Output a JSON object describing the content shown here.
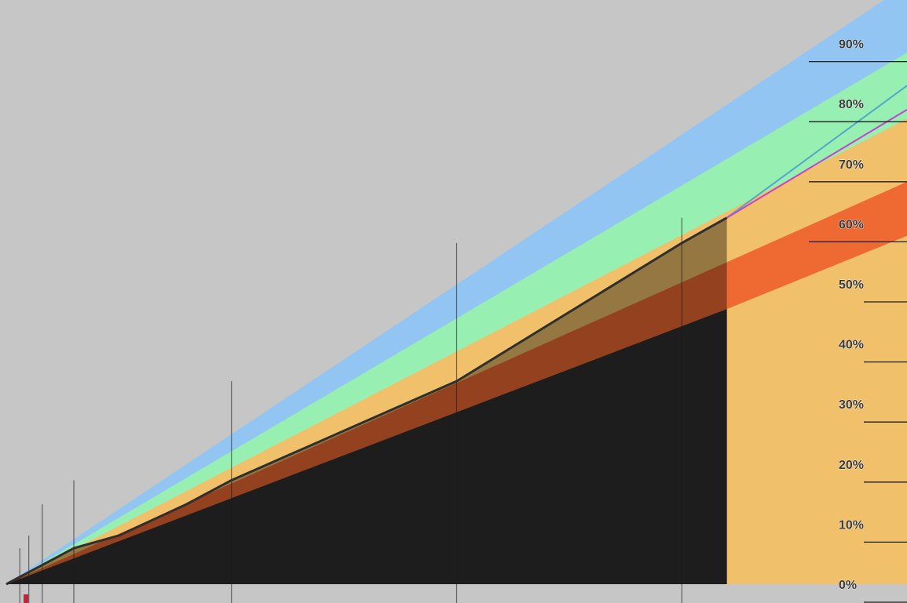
{
  "chart_data": {
    "type": "area",
    "title": "",
    "xlabel": "",
    "ylabel": "",
    "ylim": [
      0,
      100
    ],
    "y_tick_labels": [
      "0%",
      "10%",
      "20%",
      "30%",
      "40%",
      "50%",
      "60%",
      "70%",
      "80%",
      "90%"
    ],
    "y_ticks": [
      0,
      10,
      20,
      30,
      40,
      50,
      60,
      70,
      80,
      90
    ],
    "grid": false,
    "background_color": "#c6c6c6",
    "x": [
      0,
      5,
      15,
      25,
      40,
      50,
      100,
      150,
      180,
      200
    ],
    "bands": [
      {
        "color": "#2f2f2f",
        "upper_start": 0,
        "upper_end": 45.8,
        "x_end": 160
      },
      {
        "color": "#ef6a33",
        "upper_start": 0,
        "upper_end": 67.0,
        "upper_end_at_right": 58.0
      },
      {
        "color": "#f1c06a",
        "upper_start": 0,
        "upper_end": 77.5
      },
      {
        "color": "#97f0b1",
        "upper_start": 0,
        "upper_end": 88.5
      },
      {
        "color": "#92c5f1",
        "upper_start": 0,
        "upper_end": 99.8
      }
    ],
    "series": [
      {
        "color": "#2f2f2f",
        "x": [
          0,
          5,
          15,
          25,
          40,
          50,
          100,
          150,
          160
        ],
        "values": [
          0,
          2,
          6,
          8.1,
          13.3,
          17.3,
          33.8,
          56.8,
          61
        ]
      },
      {
        "color": "#53a7c9",
        "x": [
          160,
          200
        ],
        "values": [
          61,
          83
        ]
      },
      {
        "color": "#c545c9",
        "x": [
          160,
          200
        ],
        "values": [
          61,
          79
        ]
      }
    ],
    "highlight_color": "#c0263a"
  }
}
